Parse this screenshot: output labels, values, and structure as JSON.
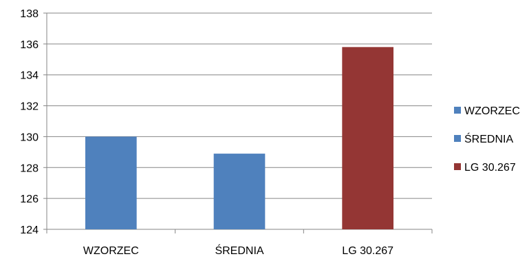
{
  "chart_data": {
    "type": "bar",
    "categories": [
      "WZORZEC",
      "ŚREDNIA",
      "LG 30.267"
    ],
    "series": [
      {
        "name": "WZORZEC",
        "values": [
          130,
          null,
          null
        ],
        "color": "#4f81bd"
      },
      {
        "name": "ŚREDNIA",
        "values": [
          null,
          128.9,
          null
        ],
        "color": "#4f81bd"
      },
      {
        "name": "LG 30.267",
        "values": [
          null,
          null,
          135.8
        ],
        "color": "#943634"
      }
    ],
    "title": "",
    "xlabel": "",
    "ylabel": "",
    "ylim": [
      124,
      138
    ],
    "yticks": [
      124,
      126,
      128,
      130,
      132,
      134,
      136,
      138
    ],
    "grid": true,
    "legend_position": "right"
  }
}
